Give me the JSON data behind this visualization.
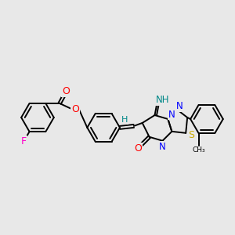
{
  "background_color": "#e8e8e8",
  "bond_color": "#000000",
  "fig_width": 3.0,
  "fig_height": 3.0,
  "dpi": 100,
  "atom_colors": {
    "O": "#ff0000",
    "N": "#0000ff",
    "S": "#ccaa00",
    "F": "#ff00cc",
    "H": "#008888",
    "C": "#000000"
  },
  "lw": 1.4
}
